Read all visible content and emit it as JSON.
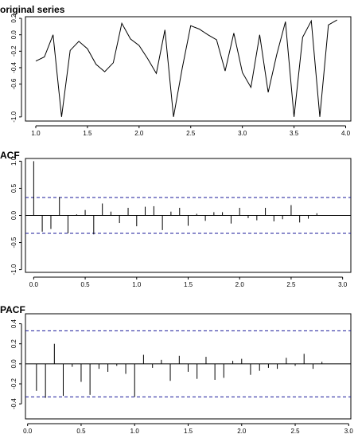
{
  "chart_data": [
    {
      "type": "line",
      "title": "original series",
      "xlim": [
        0.9,
        4.05
      ],
      "ylim": [
        -1.05,
        0.22
      ],
      "xticks": [
        1.0,
        1.5,
        2.0,
        2.5,
        3.0,
        3.5,
        4.0
      ],
      "xtick_labels": [
        "1.0",
        "1.5",
        "2.0",
        "2.5",
        "3.0",
        "3.5",
        "4.0"
      ],
      "yticks": [
        -1.0,
        -0.6,
        -0.4,
        -0.2,
        0.0,
        0.2
      ],
      "ytick_labels": [
        "-1.0",
        "-0.6",
        "-0.4",
        "-0.2",
        "0.0",
        "0.2"
      ],
      "x": [
        1.0,
        1.083,
        1.167,
        1.25,
        1.333,
        1.417,
        1.5,
        1.583,
        1.667,
        1.75,
        1.833,
        1.917,
        2.0,
        2.083,
        2.167,
        2.25,
        2.333,
        2.417,
        2.5,
        2.583,
        2.667,
        2.75,
        2.833,
        2.917,
        3.0,
        3.083,
        3.167,
        3.25,
        3.333,
        3.417,
        3.5,
        3.583,
        3.667,
        3.75,
        3.833,
        3.917
      ],
      "values": [
        -0.32,
        -0.27,
        0.0,
        -1.0,
        -0.19,
        -0.08,
        -0.17,
        -0.36,
        -0.45,
        -0.34,
        0.14,
        -0.05,
        -0.13,
        -0.29,
        -0.47,
        0.06,
        -1.0,
        -0.41,
        0.11,
        0.07,
        0.0,
        -0.06,
        -0.44,
        0.02,
        -0.46,
        -0.64,
        0.0,
        -0.7,
        -0.24,
        0.16,
        -1.0,
        -0.03,
        0.17,
        -1.0,
        0.12,
        0.18
      ]
    },
    {
      "type": "bar",
      "title": "ACF",
      "xlim": [
        -0.08,
        3.08
      ],
      "ylim": [
        -1.05,
        1.05
      ],
      "xticks": [
        0.0,
        0.5,
        1.0,
        1.5,
        2.0,
        2.5,
        3.0
      ],
      "xtick_labels": [
        "0.0",
        "0.5",
        "1.0",
        "1.5",
        "2.0",
        "2.5",
        "3.0"
      ],
      "yticks": [
        -1.0,
        -0.5,
        0.0,
        0.5,
        1.0
      ],
      "ytick_labels": [
        "-1.0",
        "-0.5",
        "0.0",
        "0.5",
        "1.0"
      ],
      "confidence_band": 0.33,
      "x": [
        0.0,
        0.083,
        0.167,
        0.25,
        0.333,
        0.417,
        0.5,
        0.583,
        0.667,
        0.75,
        0.833,
        0.917,
        1.0,
        1.083,
        1.167,
        1.25,
        1.333,
        1.417,
        1.5,
        1.583,
        1.667,
        1.75,
        1.833,
        1.917,
        2.0,
        2.083,
        2.167,
        2.25,
        2.333,
        2.417,
        2.5,
        2.583,
        2.667,
        2.75
      ],
      "values": [
        1.0,
        -0.3,
        -0.25,
        0.34,
        -0.33,
        0.02,
        0.1,
        -0.35,
        0.22,
        0.07,
        -0.14,
        0.14,
        -0.2,
        0.16,
        0.17,
        -0.27,
        0.07,
        0.14,
        -0.19,
        0.03,
        -0.1,
        0.06,
        0.06,
        -0.15,
        0.14,
        -0.05,
        -0.09,
        0.14,
        -0.11,
        -0.07,
        0.19,
        -0.13,
        -0.06,
        0.04
      ]
    },
    {
      "type": "bar",
      "title": "PACF",
      "xlim": [
        -0.02,
        3.02
      ],
      "ylim": [
        -0.55,
        0.5
      ],
      "xticks": [
        0.0,
        0.5,
        1.0,
        1.5,
        2.0,
        2.5,
        3.0
      ],
      "xtick_labels": [
        "0.0",
        "0.5",
        "1.0",
        "1.5",
        "2.0",
        "2.5",
        "3.0"
      ],
      "yticks": [
        -0.4,
        -0.2,
        0.0,
        0.2,
        0.4
      ],
      "ytick_labels": [
        "-0.4",
        "-0.2",
        "0.0",
        "0.2",
        "0.4"
      ],
      "confidence_band": 0.33,
      "x": [
        0.083,
        0.167,
        0.25,
        0.333,
        0.417,
        0.5,
        0.583,
        0.667,
        0.75,
        0.833,
        0.917,
        1.0,
        1.083,
        1.167,
        1.25,
        1.333,
        1.417,
        1.5,
        1.583,
        1.667,
        1.75,
        1.833,
        1.917,
        2.0,
        2.083,
        2.167,
        2.25,
        2.333,
        2.417,
        2.5,
        2.583,
        2.667,
        2.75
      ],
      "values": [
        -0.27,
        -0.34,
        0.2,
        -0.32,
        -0.03,
        -0.18,
        -0.31,
        -0.05,
        -0.08,
        -0.02,
        -0.1,
        -0.33,
        0.09,
        -0.04,
        0.04,
        -0.17,
        0.08,
        -0.08,
        -0.15,
        0.07,
        -0.16,
        -0.14,
        0.03,
        0.05,
        -0.11,
        -0.07,
        -0.04,
        -0.05,
        0.06,
        -0.02,
        0.1,
        -0.05,
        0.02
      ]
    }
  ]
}
